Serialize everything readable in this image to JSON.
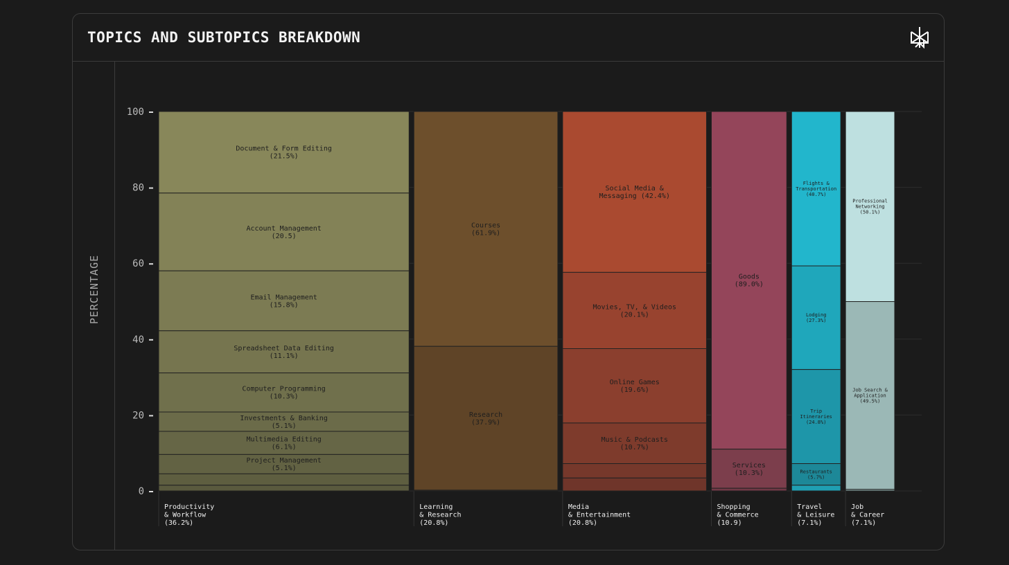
{
  "header": {
    "title": "TOPICS AND SUBTOPICS BREAKDOWN",
    "logo_icon": "perplexity-logo-icon"
  },
  "chart_data": {
    "type": "marimekko",
    "title": "TOPICS AND SUBTOPICS BREAKDOWN",
    "ylabel": "PERCENTAGE",
    "ylim": [
      0,
      100
    ],
    "yticks": [
      "0",
      "20",
      "40",
      "60",
      "80",
      "100"
    ],
    "grid": true,
    "categories": [
      {
        "label": [
          "Productivity",
          "& Workflow",
          "(36.2%)"
        ],
        "share": 36.2,
        "segments": [
          {
            "label": [
              "Document & Form Editing",
              "(21.5%)"
            ],
            "value": 21.5,
            "color": "#88875a"
          },
          {
            "label": [
              "Account Management",
              "(20.5)"
            ],
            "value": 20.5,
            "color": "#838257"
          },
          {
            "label": [
              "Email Management",
              "(15.8%)"
            ],
            "value": 15.8,
            "color": "#7c7b53"
          },
          {
            "label": [
              "Spreadsheet Data Editing",
              "(11.1%)"
            ],
            "value": 11.1,
            "color": "#76754f"
          },
          {
            "label": [
              "Computer Programming",
              "(10.3%)"
            ],
            "value": 10.3,
            "color": "#70704c"
          },
          {
            "label": [
              "Investments & Banking",
              "(5.1%)"
            ],
            "value": 5.1,
            "color": "#6b6b49"
          },
          {
            "label": [
              "Multimedia Editing",
              "(6.1%)"
            ],
            "value": 6.1,
            "color": "#666646"
          },
          {
            "label": [
              "Project Management",
              "(5.1%)"
            ],
            "value": 5.1,
            "color": "#626243"
          },
          {
            "label": [],
            "value": 3.0,
            "color": "#5e5e40"
          },
          {
            "label": [],
            "value": 1.5,
            "color": "#5a5a3e"
          }
        ]
      },
      {
        "label": [
          "Learning",
          "& Research",
          "(20.8%)"
        ],
        "share": 20.8,
        "segments": [
          {
            "label": [
              "Courses",
              "(61.9%)"
            ],
            "value": 61.9,
            "color": "#6d4f2c"
          },
          {
            "label": [
              "Research",
              "(37.9%)"
            ],
            "value": 37.9,
            "color": "#5f4427"
          },
          {
            "label": [],
            "value": 0.2,
            "color": "#5a4125"
          }
        ]
      },
      {
        "label": [
          "Media",
          "& Entertainment",
          "(20.8%)"
        ],
        "share": 20.8,
        "segments": [
          {
            "label": [
              "Social Media &",
              "Messaging (42.4%)"
            ],
            "value": 42.4,
            "color": "#aa4a30"
          },
          {
            "label": [
              "Movies, TV, & Videos",
              "(20.1%)"
            ],
            "value": 20.1,
            "color": "#98432f"
          },
          {
            "label": [
              "Online Games",
              "(19.6%)"
            ],
            "value": 19.6,
            "color": "#8b3f2e"
          },
          {
            "label": [
              "Music & Podcasts",
              "(10.7%)"
            ],
            "value": 10.7,
            "color": "#7e3b2c"
          },
          {
            "label": [],
            "value": 3.8,
            "color": "#76382b"
          },
          {
            "label": [],
            "value": 3.4,
            "color": "#6f352a"
          }
        ]
      },
      {
        "label": [
          "Shopping",
          "& Commerce",
          "(10.9)"
        ],
        "share": 10.9,
        "segments": [
          {
            "label": [
              "Goods",
              "(89.0%)"
            ],
            "value": 89.0,
            "color": "#94455a"
          },
          {
            "label": [
              "Services",
              "(10.3%)"
            ],
            "value": 10.3,
            "color": "#7c3e4c"
          },
          {
            "label": [],
            "value": 0.7,
            "color": "#703846"
          }
        ]
      },
      {
        "label": [
          "Travel",
          "& Leisure",
          "(7.1%)"
        ],
        "share": 7.1,
        "segments": [
          {
            "label": [
              "Flights &",
              "Transportation",
              "(40.7%)"
            ],
            "value": 40.7,
            "color": "#22b6cc"
          },
          {
            "label": [
              "Lodging",
              "(27.3%)"
            ],
            "value": 27.3,
            "color": "#1fa7bb"
          },
          {
            "label": [
              "Trip",
              "Itineraries",
              "(24.8%)"
            ],
            "value": 24.8,
            "color": "#1e96a9"
          },
          {
            "label": [
              "Restaurants",
              "(5.7%)"
            ],
            "value": 5.7,
            "color": "#1d8898"
          },
          {
            "label": [],
            "value": 1.5,
            "color": "#1f9fb2"
          }
        ]
      },
      {
        "label": [
          "Job",
          "& Career",
          "(7.1%)"
        ],
        "share": 7.1,
        "segments": [
          {
            "label": [
              "Professional",
              "Networking",
              "(50.1%)"
            ],
            "value": 50.1,
            "color": "#bee0e0"
          },
          {
            "label": [
              "Job Search &",
              "Application",
              "(49.5%)"
            ],
            "value": 49.5,
            "color": "#9bb8b6"
          },
          {
            "label": [],
            "value": 0.4,
            "color": "#8aa6a4"
          }
        ]
      }
    ]
  }
}
